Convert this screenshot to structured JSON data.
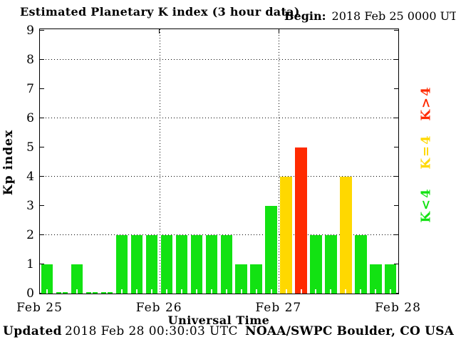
{
  "chart_data": {
    "type": "bar",
    "title": "Estimated Planetary K index (3 hour data)",
    "begin_label": "Begin:",
    "begin_value": "2018 Feb 25 0000 UTC",
    "xlabel": "Universal Time",
    "ylabel": "Kp index",
    "ylim": [
      0,
      9
    ],
    "yticks": [
      0,
      1,
      2,
      3,
      4,
      5,
      6,
      7,
      8,
      9
    ],
    "grid_y_dotted": [
      2,
      4,
      6,
      8
    ],
    "x_day_labels": [
      "Feb 25",
      "Feb 26",
      "Feb 27",
      "Feb 28"
    ],
    "bars_per_day": 8,
    "hours_per_bar": 3,
    "values": [
      1,
      0,
      1,
      0,
      0,
      2,
      2,
      2,
      2,
      2,
      2,
      2,
      2,
      1,
      1,
      3,
      4,
      5,
      2,
      2,
      4,
      2,
      1,
      1
    ],
    "legend": [
      {
        "label": "K>4",
        "color": "#ff2a00"
      },
      {
        "label": "K=4",
        "color": "#ffd800"
      },
      {
        "label": "K<4",
        "color": "#12e212"
      }
    ],
    "colors": {
      "k_lt_4": "#12e212",
      "k_eq_4": "#ffd800",
      "k_gt_4": "#ff2a00",
      "axis": "#000000",
      "background": "#ffffff"
    }
  },
  "footer": {
    "updated_label": "Updated",
    "updated_value": "2018 Feb 28 00:30:03 UTC",
    "source": "NOAA/SWPC Boulder, CO USA"
  }
}
